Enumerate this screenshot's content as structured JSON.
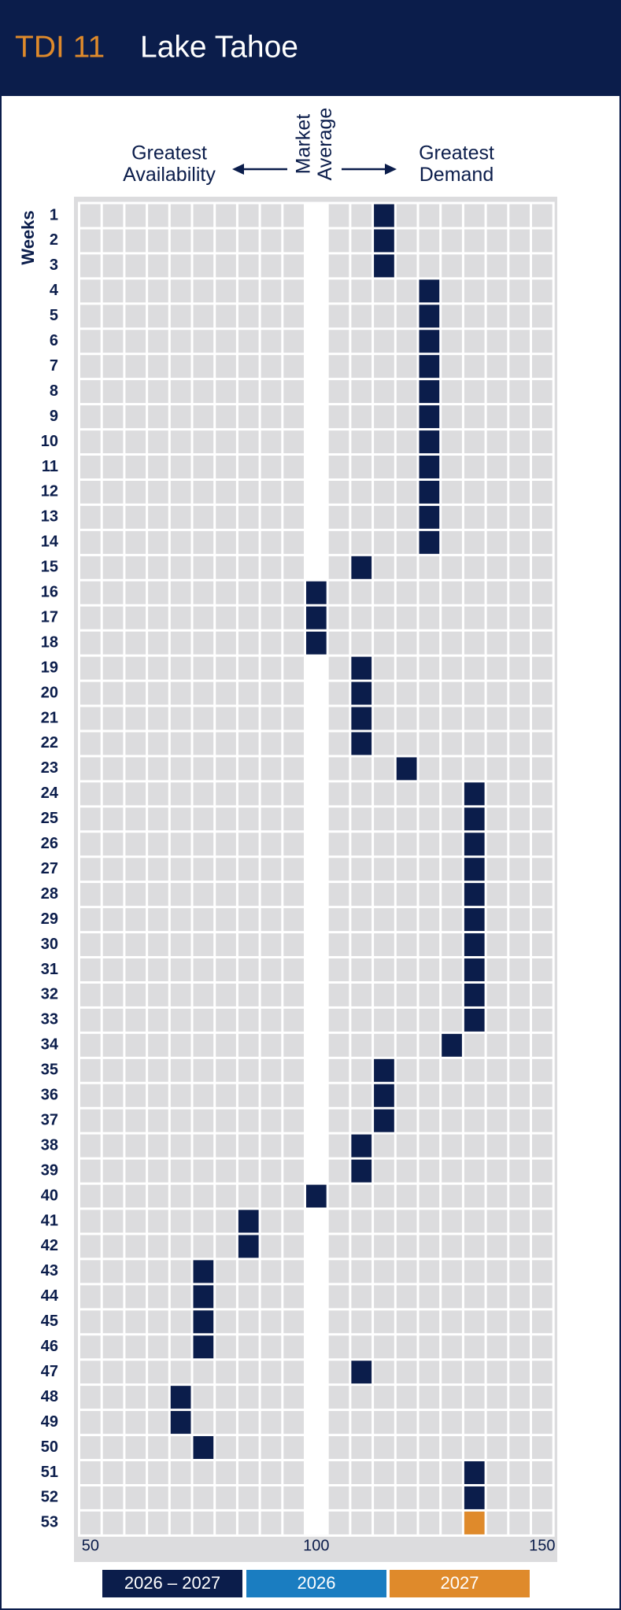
{
  "chart_data": {
    "type": "dot-grid",
    "title": "TDI 11",
    "subtitle": "Lake Tahoe",
    "annotations": {
      "left": "Greatest Availability",
      "center": "Market Average",
      "right": "Greatest Demand"
    },
    "y_label": "Weeks",
    "categories": [
      "1",
      "2",
      "3",
      "4",
      "5",
      "6",
      "7",
      "8",
      "9",
      "10",
      "11",
      "12",
      "13",
      "14",
      "15",
      "16",
      "17",
      "18",
      "19",
      "20",
      "21",
      "22",
      "23",
      "24",
      "25",
      "26",
      "27",
      "28",
      "29",
      "30",
      "31",
      "32",
      "33",
      "34",
      "35",
      "36",
      "37",
      "38",
      "39",
      "40",
      "41",
      "42",
      "43",
      "44",
      "45",
      "46",
      "47",
      "48",
      "49",
      "50",
      "51",
      "52",
      "53"
    ],
    "xlim": [
      47.5,
      152.5
    ],
    "xticks": [
      50,
      100,
      150
    ],
    "cell_step": 5,
    "series": [
      {
        "name": "2026 – 2027",
        "color": "#0b1d4b",
        "values": [
          115,
          115,
          115,
          125,
          125,
          125,
          125,
          125,
          125,
          125,
          125,
          125,
          125,
          125,
          110,
          100,
          100,
          100,
          110,
          110,
          110,
          110,
          120,
          135,
          135,
          135,
          135,
          135,
          135,
          135,
          135,
          135,
          135,
          130,
          115,
          115,
          115,
          110,
          110,
          100,
          85,
          85,
          75,
          75,
          75,
          75,
          110,
          70,
          70,
          75,
          135,
          135,
          null
        ]
      },
      {
        "name": "2026",
        "color": "#1a7dc1",
        "values": [
          null,
          null,
          null,
          null,
          null,
          null,
          null,
          null,
          null,
          null,
          null,
          null,
          null,
          null,
          null,
          null,
          null,
          null,
          null,
          null,
          null,
          null,
          null,
          null,
          null,
          null,
          null,
          null,
          null,
          null,
          null,
          null,
          null,
          null,
          null,
          null,
          null,
          null,
          null,
          null,
          null,
          null,
          null,
          null,
          null,
          null,
          null,
          null,
          null,
          null,
          null,
          null,
          null
        ]
      },
      {
        "name": "2027",
        "color": "#df8a2b",
        "values": [
          null,
          null,
          null,
          null,
          null,
          null,
          null,
          null,
          null,
          null,
          null,
          null,
          null,
          null,
          null,
          null,
          null,
          null,
          null,
          null,
          null,
          null,
          null,
          null,
          null,
          null,
          null,
          null,
          null,
          null,
          null,
          null,
          null,
          null,
          null,
          null,
          null,
          null,
          null,
          null,
          null,
          null,
          null,
          null,
          null,
          null,
          null,
          null,
          null,
          null,
          null,
          null,
          135
        ]
      }
    ]
  }
}
